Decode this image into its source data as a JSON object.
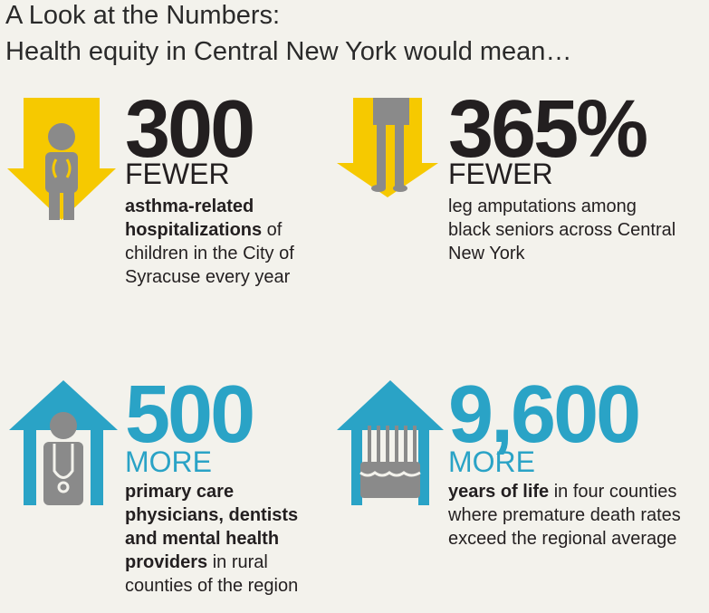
{
  "header": {
    "title_line1": "A Look at the Numbers:",
    "title_line2": "Health equity in Central New York would mean…"
  },
  "items": [
    {
      "number": "300",
      "direction": "FEWER",
      "bold": "asthma-related hospitalizations",
      "text": " of children in the City of Syracuse every year"
    },
    {
      "number": "365%",
      "direction": "FEWER",
      "text": "leg amputations among black seniors across Central New York"
    },
    {
      "number": "500",
      "direction": "MORE",
      "bold": "primary care physicians, dentists and mental health providers",
      "text": " in rural counties of the region"
    },
    {
      "number": "9,600",
      "direction": "MORE",
      "bold": "years of life",
      "text": " in four counties where premature death rates exceed the regional average"
    }
  ]
}
